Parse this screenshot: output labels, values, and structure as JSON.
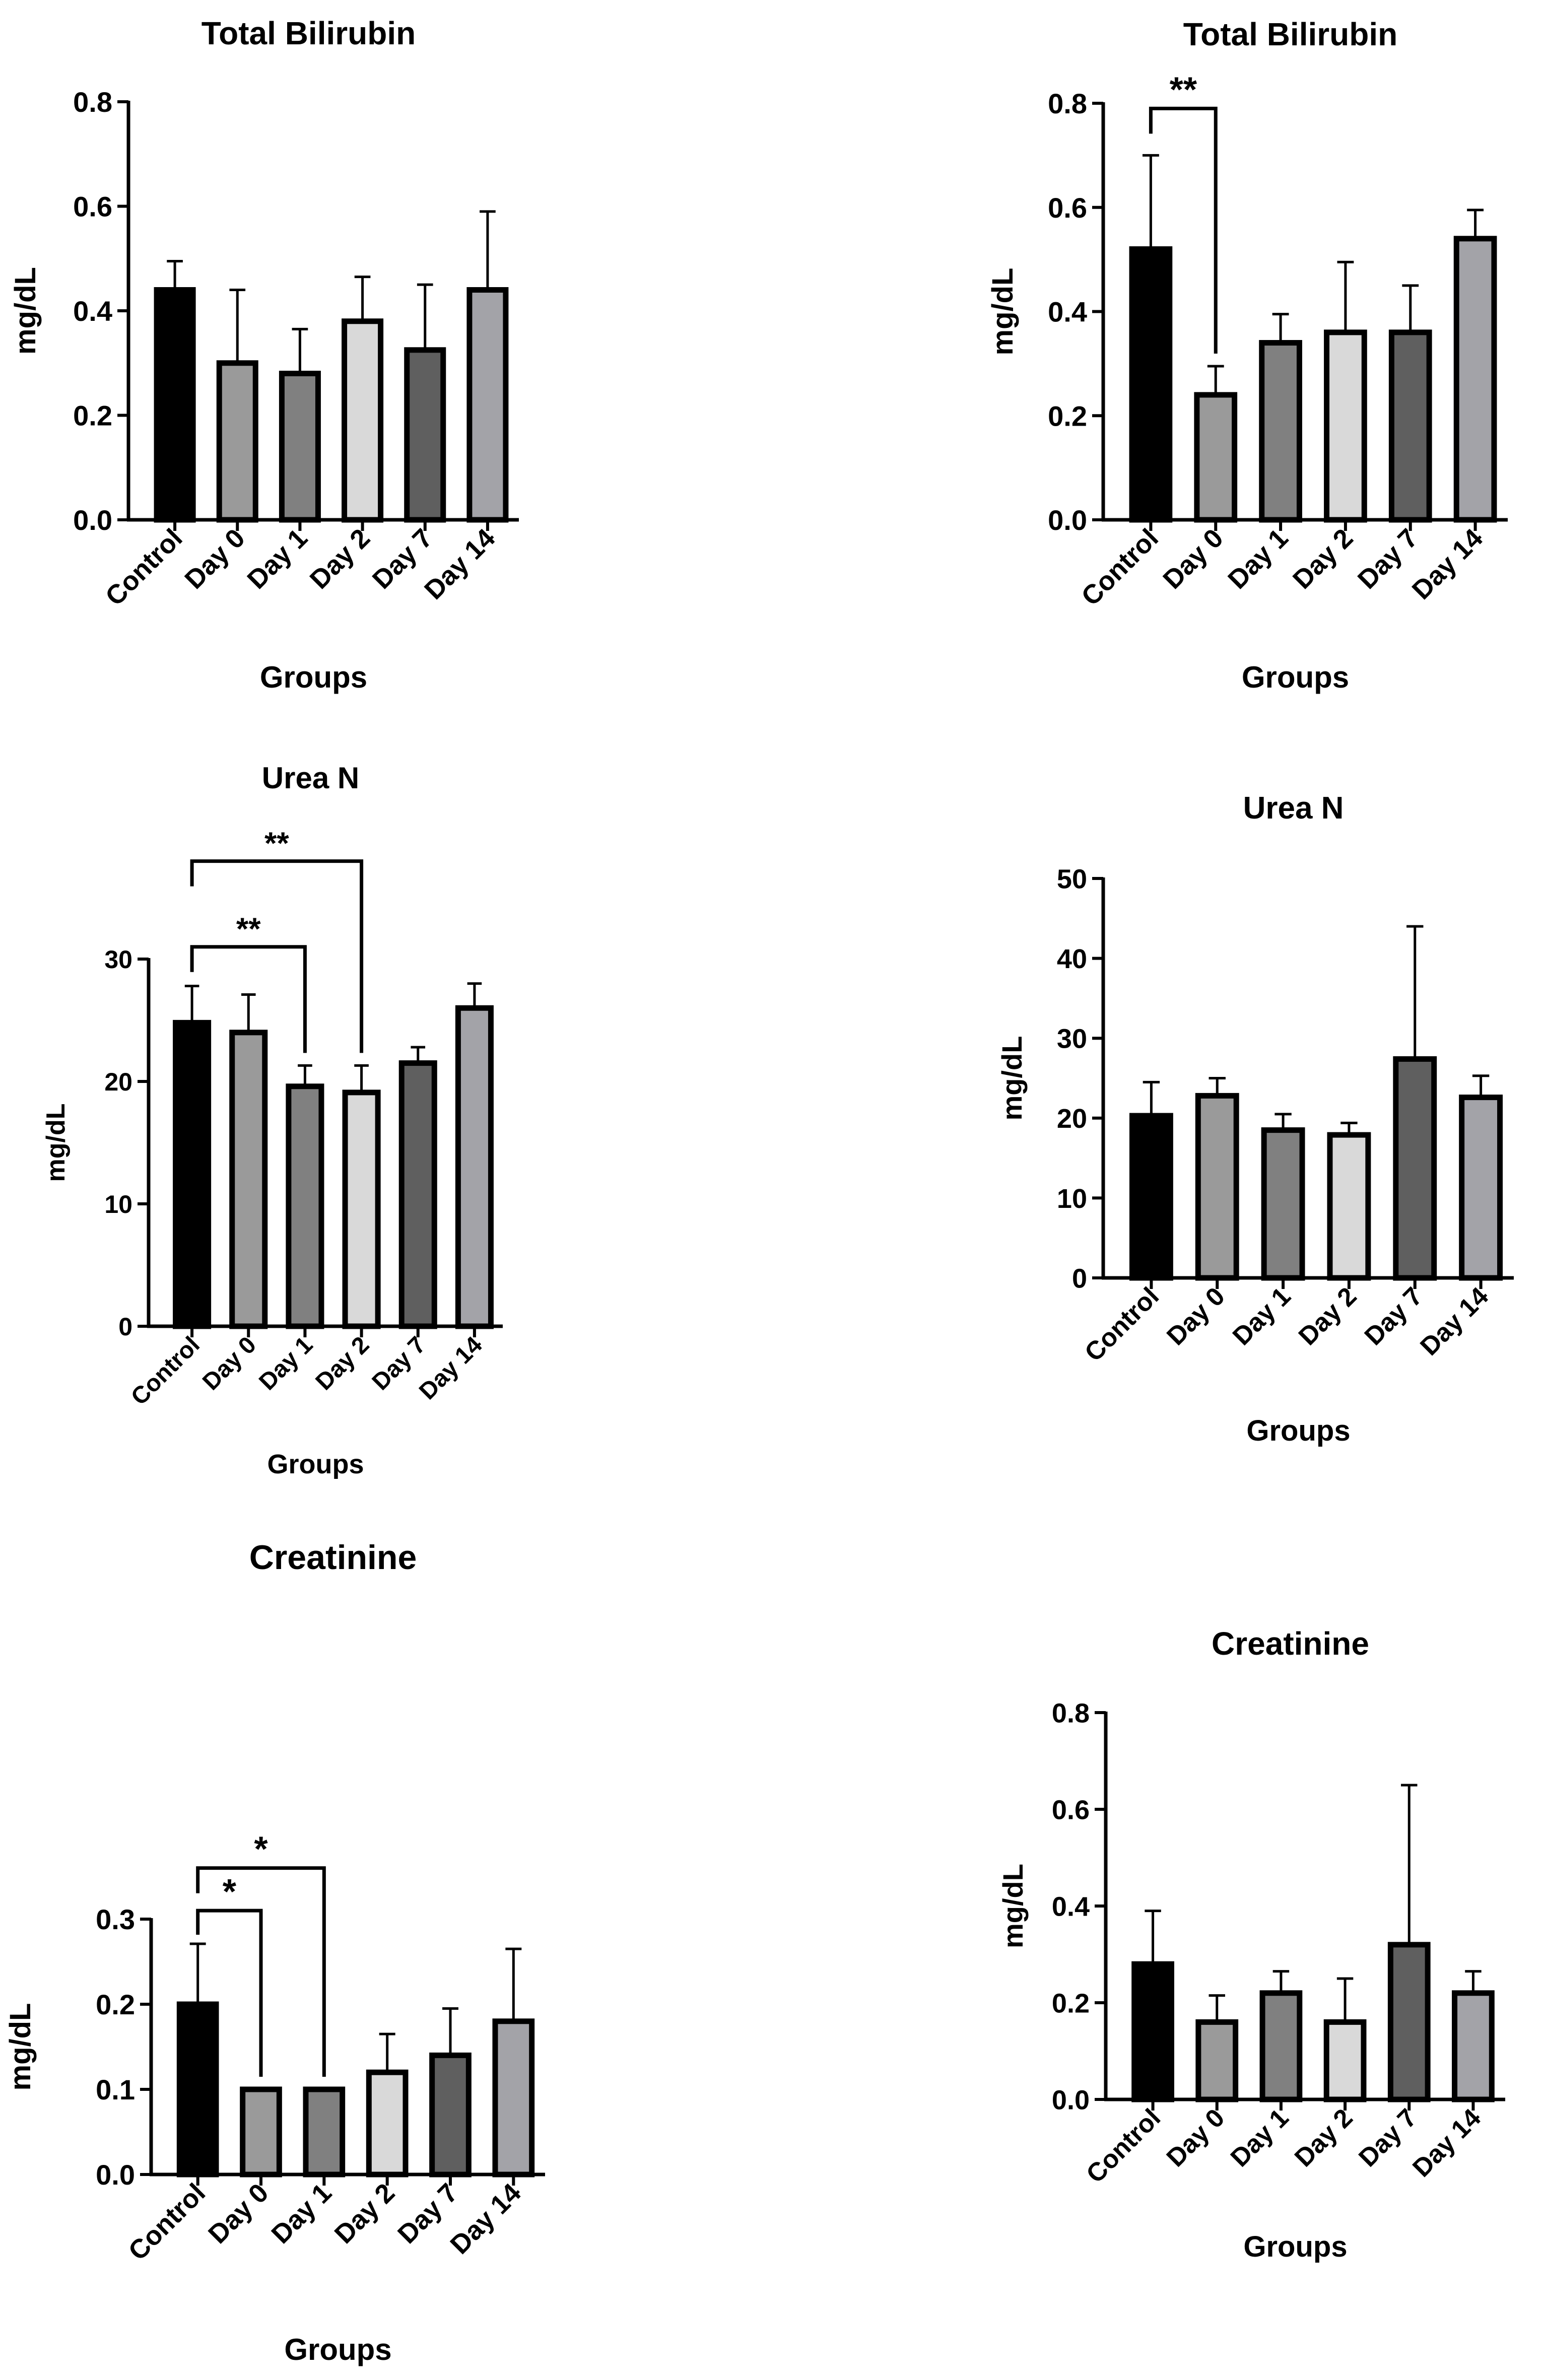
{
  "colors": {
    "Control": "#000000",
    "Day 0": "#9a9a9a",
    "Day 1": "#808080",
    "Day 2": "#d9d9d9",
    "Day 7": "#5f5f5f",
    "Day 14": "#a3a3a8",
    "axis": "#000000"
  },
  "chart_data": [
    {
      "type": "bar",
      "title": "Total Bilirubin",
      "xlabel": "Groups",
      "ylabel": "mg/dL",
      "categories": [
        "Control",
        "Day 0",
        "Day 1",
        "Day 2",
        "Day 7",
        "Day 14"
      ],
      "values": [
        0.44,
        0.3,
        0.28,
        0.38,
        0.325,
        0.44
      ],
      "errors": [
        0.055,
        0.14,
        0.085,
        0.085,
        0.125,
        0.15
      ],
      "ylim": [
        0,
        0.8
      ],
      "yticks": [
        0.0,
        0.2,
        0.4,
        0.6,
        0.8
      ],
      "ytick_labels": [
        "0.0",
        "0.2",
        "0.4",
        "0.6",
        "0.8"
      ],
      "significance": []
    },
    {
      "type": "bar",
      "title": "Total Bilirubin",
      "xlabel": "Groups",
      "ylabel": "mg/dL",
      "categories": [
        "Control",
        "Day 0",
        "Day 1",
        "Day 2",
        "Day 7",
        "Day 14"
      ],
      "values": [
        0.52,
        0.24,
        0.34,
        0.36,
        0.36,
        0.54
      ],
      "errors": [
        0.18,
        0.055,
        0.055,
        0.135,
        0.09,
        0.055
      ],
      "ylim": [
        0,
        0.8
      ],
      "yticks": [
        0.0,
        0.2,
        0.4,
        0.6,
        0.8
      ],
      "ytick_labels": [
        "0.0",
        "0.2",
        "0.4",
        "0.6",
        "0.8"
      ],
      "significance": [
        {
          "from": "Control",
          "to": "Day 0",
          "label": "**",
          "y": 0.79
        }
      ]
    },
    {
      "type": "bar",
      "title": "Urea N",
      "xlabel": "Groups",
      "ylabel": "mg/dL",
      "categories": [
        "Control",
        "Day 0",
        "Day 1",
        "Day 2",
        "Day 7",
        "Day 14"
      ],
      "values": [
        24.8,
        24.0,
        19.6,
        19.1,
        21.5,
        26.0
      ],
      "errors": [
        3.0,
        3.1,
        1.7,
        2.2,
        1.3,
        2.0
      ],
      "ylim": [
        0,
        30
      ],
      "yticks": [
        0,
        10,
        20,
        30
      ],
      "ytick_labels": [
        "0",
        "10",
        "20",
        "30"
      ],
      "significance": [
        {
          "from": "Control",
          "to": "Day 1",
          "label": "**",
          "y": 31.0
        },
        {
          "from": "Control",
          "to": "Day 2",
          "label": "**",
          "y": 38.0
        }
      ]
    },
    {
      "type": "bar",
      "title": "Urea N",
      "xlabel": "Groups",
      "ylabel": "mg/dL",
      "categories": [
        "Control",
        "Day 0",
        "Day 1",
        "Day 2",
        "Day 7",
        "Day 14"
      ],
      "values": [
        20.3,
        22.8,
        18.5,
        17.9,
        27.4,
        22.6
      ],
      "errors": [
        4.2,
        2.2,
        2.0,
        1.5,
        16.6,
        2.7
      ],
      "ylim": [
        0,
        50
      ],
      "yticks": [
        0,
        10,
        20,
        30,
        40,
        50
      ],
      "ytick_labels": [
        "0",
        "10",
        "20",
        "30",
        "40",
        "50"
      ],
      "significance": []
    },
    {
      "type": "bar",
      "title": "Creatinine",
      "xlabel": "Groups",
      "ylabel": "mg/dL",
      "categories": [
        "Control",
        "Day 0",
        "Day 1",
        "Day 2",
        "Day 7",
        "Day 14"
      ],
      "values": [
        0.2,
        0.1,
        0.1,
        0.12,
        0.14,
        0.18
      ],
      "errors": [
        0.071,
        0.0,
        0.0,
        0.045,
        0.055,
        0.085
      ],
      "ylim": [
        0,
        0.3
      ],
      "yticks": [
        0.0,
        0.1,
        0.2,
        0.3
      ],
      "ytick_labels": [
        "0.0",
        "0.1",
        "0.2",
        "0.3"
      ],
      "significance": [
        {
          "from": "Control",
          "to": "Day 0",
          "label": "*",
          "y": 0.31
        },
        {
          "from": "Control",
          "to": "Day 1",
          "label": "*",
          "y": 0.36
        }
      ]
    },
    {
      "type": "bar",
      "title": "Creatinine",
      "xlabel": "Groups",
      "ylabel": "mg/dL",
      "categories": [
        "Control",
        "Day 0",
        "Day 1",
        "Day 2",
        "Day 7",
        "Day 14"
      ],
      "values": [
        0.28,
        0.16,
        0.22,
        0.16,
        0.32,
        0.22
      ],
      "errors": [
        0.11,
        0.055,
        0.045,
        0.09,
        0.33,
        0.045
      ],
      "ylim": [
        0,
        0.8
      ],
      "yticks": [
        0.0,
        0.2,
        0.4,
        0.6,
        0.8
      ],
      "ytick_labels": [
        "0.0",
        "0.2",
        "0.4",
        "0.6",
        "0.8"
      ],
      "significance": []
    }
  ]
}
